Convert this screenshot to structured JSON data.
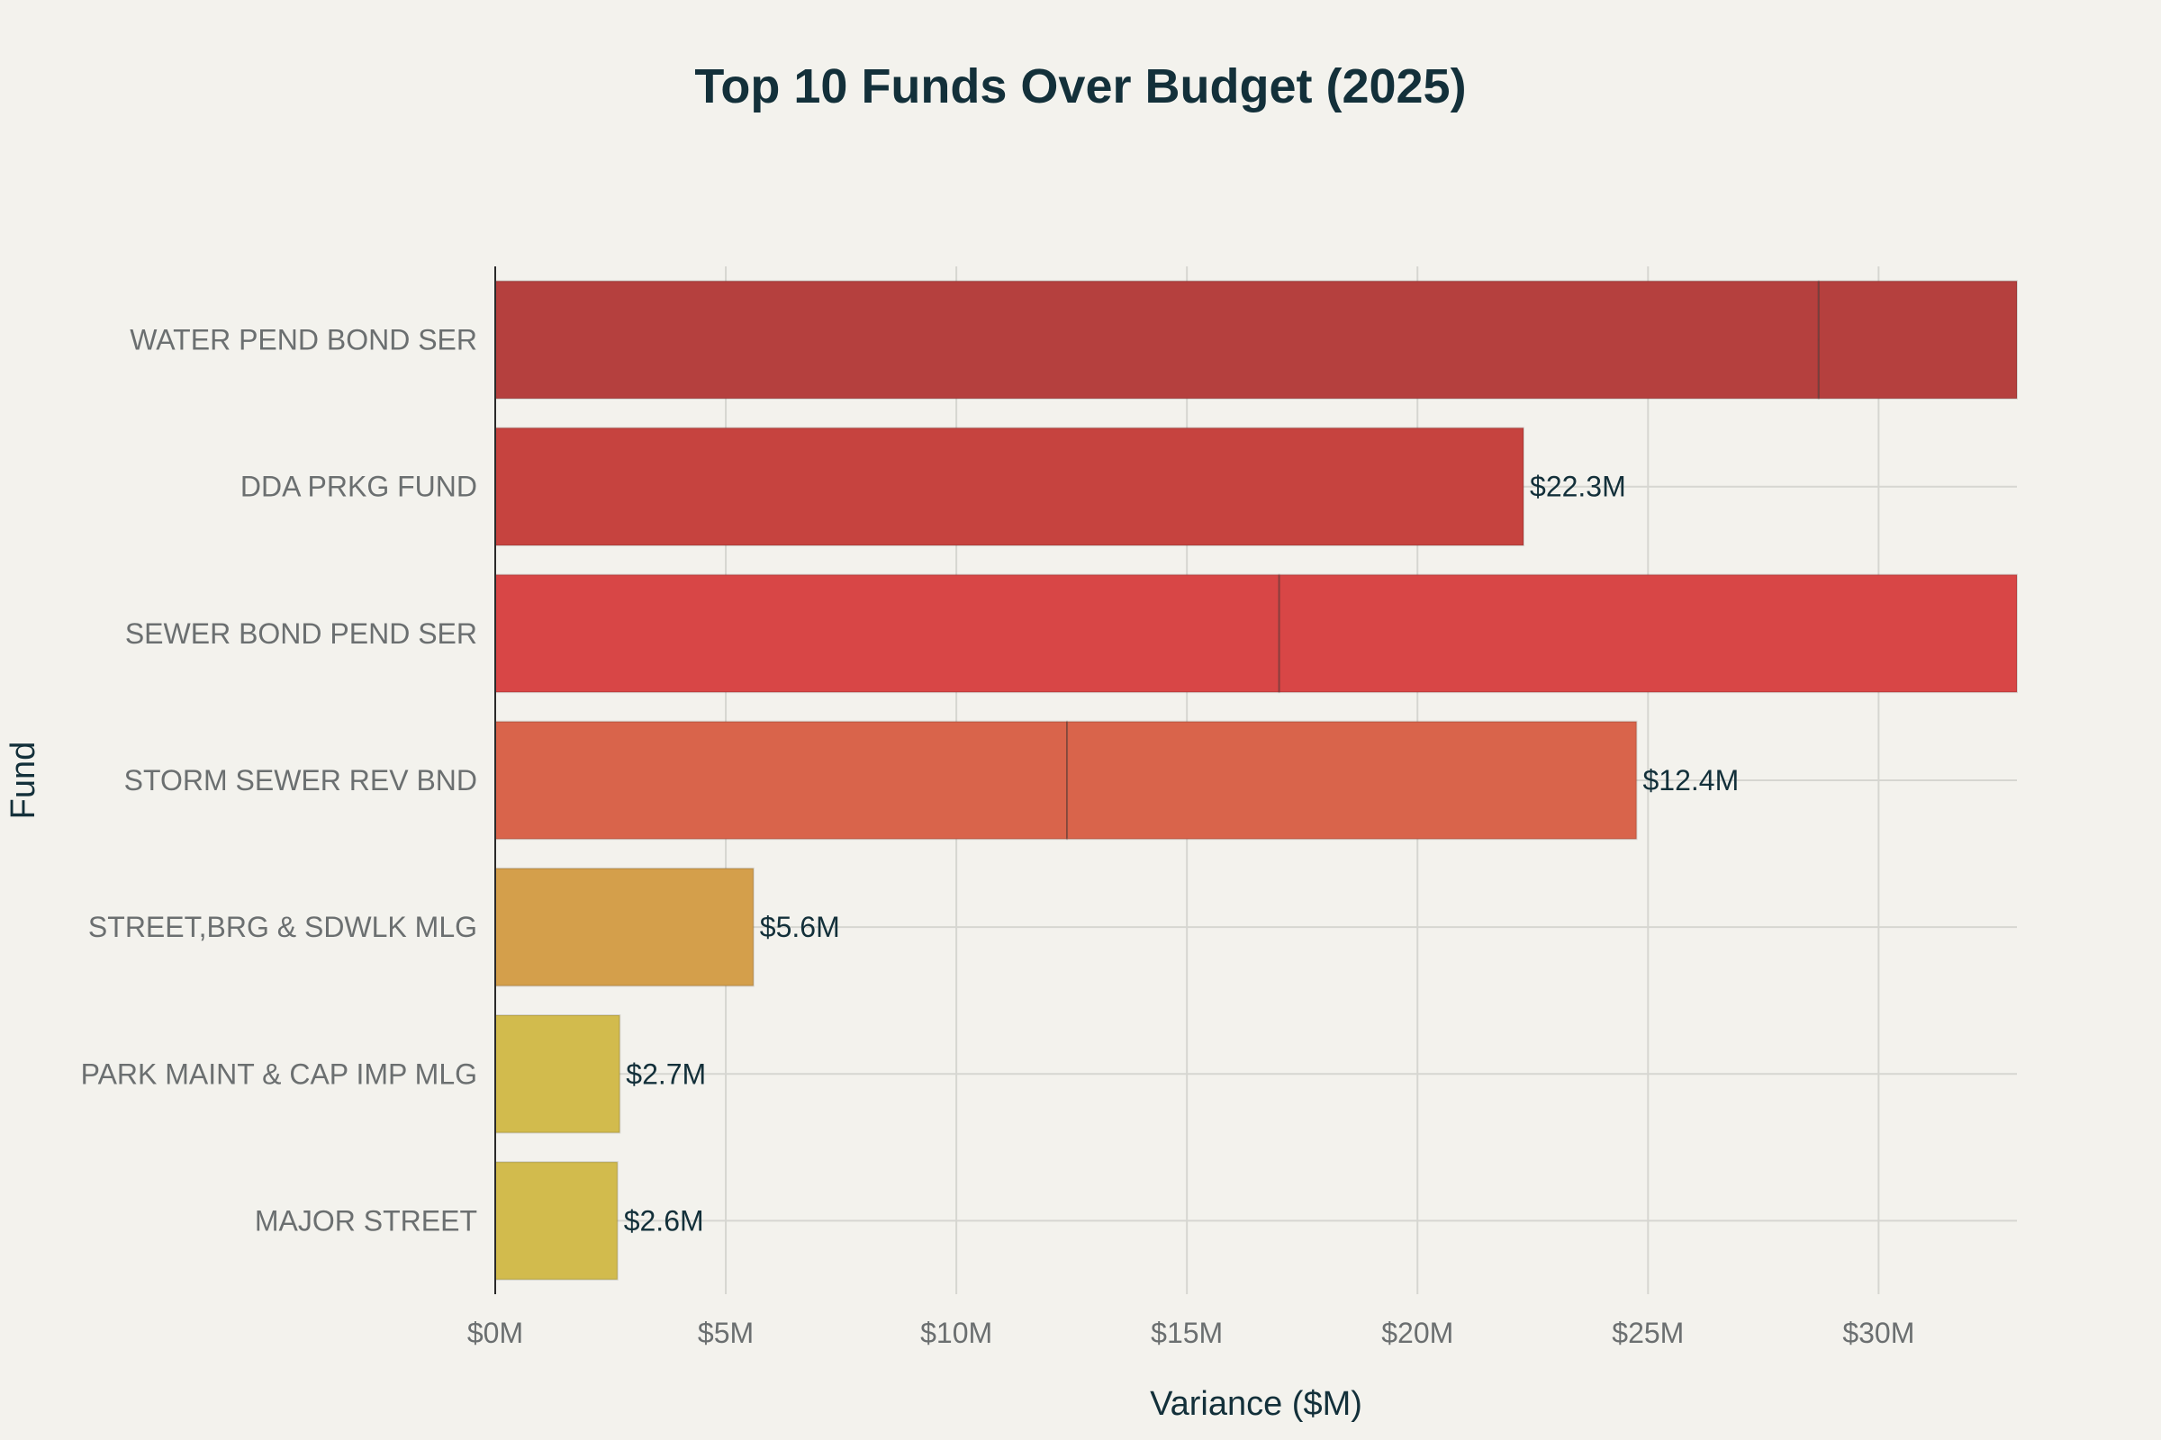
{
  "chart_data": {
    "type": "bar",
    "orientation": "horizontal",
    "title": "Top 10 Funds Over Budget (2025)",
    "xlabel": "Variance ($M)",
    "ylabel": "Fund",
    "xlim": [
      0,
      33
    ],
    "x_ticks": [
      0,
      5,
      10,
      15,
      20,
      25,
      30
    ],
    "x_tick_labels": [
      "$0M",
      "$5M",
      "$10M",
      "$15M",
      "$20M",
      "$25M",
      "$30M"
    ],
    "grid": true,
    "bars": [
      {
        "category": "WATER PEND BOND SER",
        "segments": [
          28.7,
          4.3
        ],
        "label": "",
        "color": "#b5403e"
      },
      {
        "category": "DDA PRKG FUND",
        "segments": [
          22.3
        ],
        "label": "$22.3M",
        "color": "#c6433f"
      },
      {
        "category": "SEWER BOND PEND SER",
        "segments": [
          17.0,
          16.0
        ],
        "label": "",
        "color": "#d84646"
      },
      {
        "category": "STORM SEWER REV BND",
        "segments": [
          12.4,
          12.35
        ],
        "label": "$12.4M",
        "color": "#d9644b"
      },
      {
        "category": "STREET,BRG & SDWLK MLG",
        "segments": [
          5.6
        ],
        "label": "$5.6M",
        "color": "#d49f4b"
      },
      {
        "category": "PARK MAINT & CAP IMP MLG",
        "segments": [
          2.7
        ],
        "label": "$2.7M",
        "color": "#d2bb4d"
      },
      {
        "category": "MAJOR STREET",
        "segments": [
          2.65
        ],
        "label": "$2.6M",
        "color": "#d2bb4d"
      }
    ]
  }
}
